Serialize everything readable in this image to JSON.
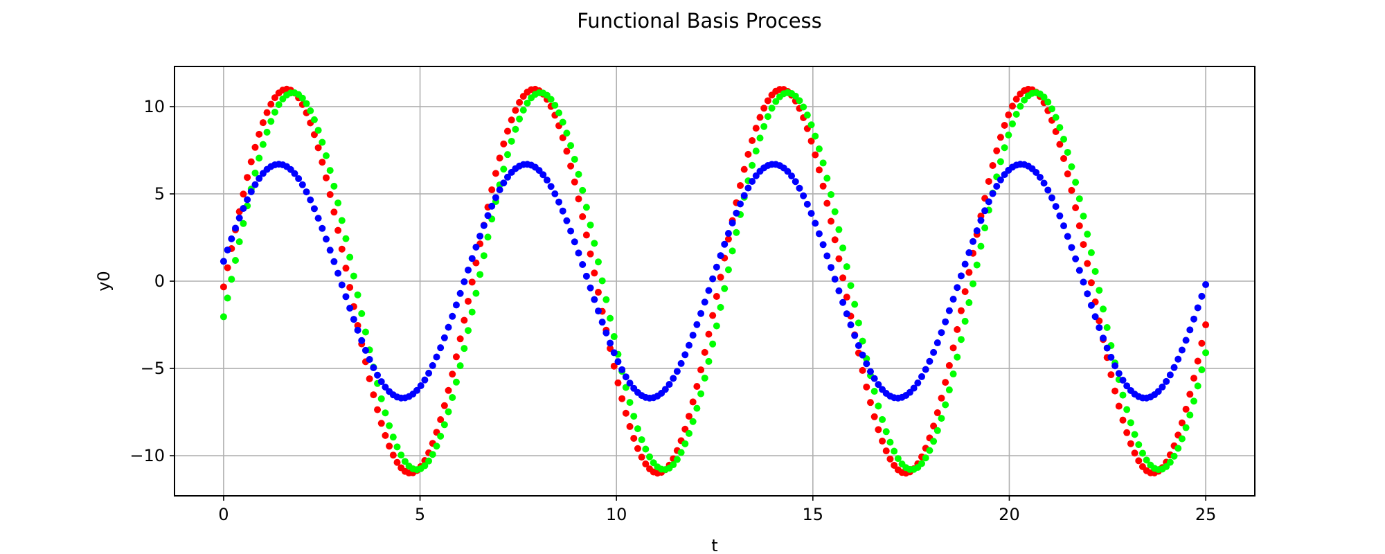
{
  "chart_data": {
    "type": "scatter",
    "title": "Functional Basis Process",
    "xlabel": "t",
    "ylabel": "y0",
    "xlim": [
      -1.25,
      26.25
    ],
    "ylim": [
      -12.3,
      12.3
    ],
    "x_ticks": [
      0,
      5,
      10,
      15,
      20,
      25
    ],
    "y_ticks": [
      -10,
      -5,
      0,
      5,
      10
    ],
    "x_tick_labels": [
      "0",
      "5",
      "10",
      "15",
      "20",
      "25"
    ],
    "y_tick_labels": [
      "−10",
      "−5",
      "0",
      "5",
      "10"
    ],
    "grid": true,
    "legend": "none",
    "x": {
      "start": 0,
      "end": 25,
      "count": 250
    },
    "series": [
      {
        "color": "#ff0000",
        "amplitude": 11.0,
        "period": 6.3,
        "phase": -0.03,
        "offset": 0.0
      },
      {
        "color": "#00ff00",
        "amplitude": 10.8,
        "period": 6.3,
        "phase": -0.19,
        "offset": 0.0
      },
      {
        "color": "#0000ff",
        "amplitude": 6.7,
        "period": 6.3,
        "phase": 0.17,
        "offset": 0.0
      }
    ]
  }
}
